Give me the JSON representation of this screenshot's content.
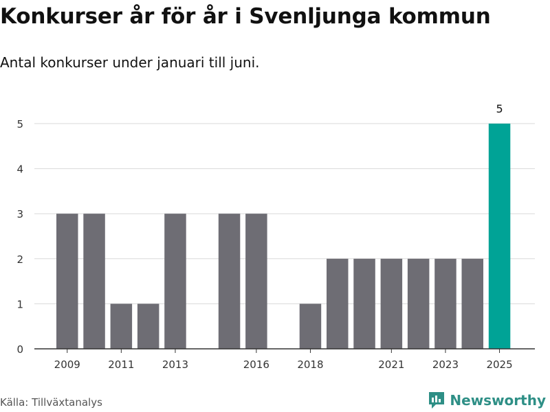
{
  "header": {
    "title": "Konkurser år för år i Svenljunga kommun",
    "subtitle": "Antal konkurser under januari till juni."
  },
  "footer": {
    "source": "Källa: Tillväxtanalys",
    "brand": "Newsworthy"
  },
  "colors": {
    "bar": "#6e6d74",
    "highlight": "#00a396",
    "grid": "#d9d9d9",
    "axis": "#333333",
    "brand": "#2e8f86"
  },
  "icons": {
    "brand_logo": "newsworthy-logo-icon"
  },
  "chart_data": {
    "type": "bar",
    "x": [
      2009,
      2010,
      2011,
      2012,
      2013,
      2014,
      2015,
      2016,
      2017,
      2018,
      2019,
      2020,
      2021,
      2022,
      2023,
      2024,
      2025
    ],
    "values": [
      3,
      3,
      1,
      1,
      3,
      0,
      3,
      3,
      0,
      1,
      2,
      2,
      2,
      2,
      2,
      2,
      5
    ],
    "x_tick_labels": [
      "2009",
      "2011",
      "2013",
      "2016",
      "2018",
      "2021",
      "2023",
      "2025"
    ],
    "y_ticks": [
      0,
      1,
      2,
      3,
      4,
      5
    ],
    "ylim": [
      0,
      5
    ],
    "grid": true,
    "highlight": {
      "x": 2025,
      "value": 5,
      "label": "5"
    }
  }
}
